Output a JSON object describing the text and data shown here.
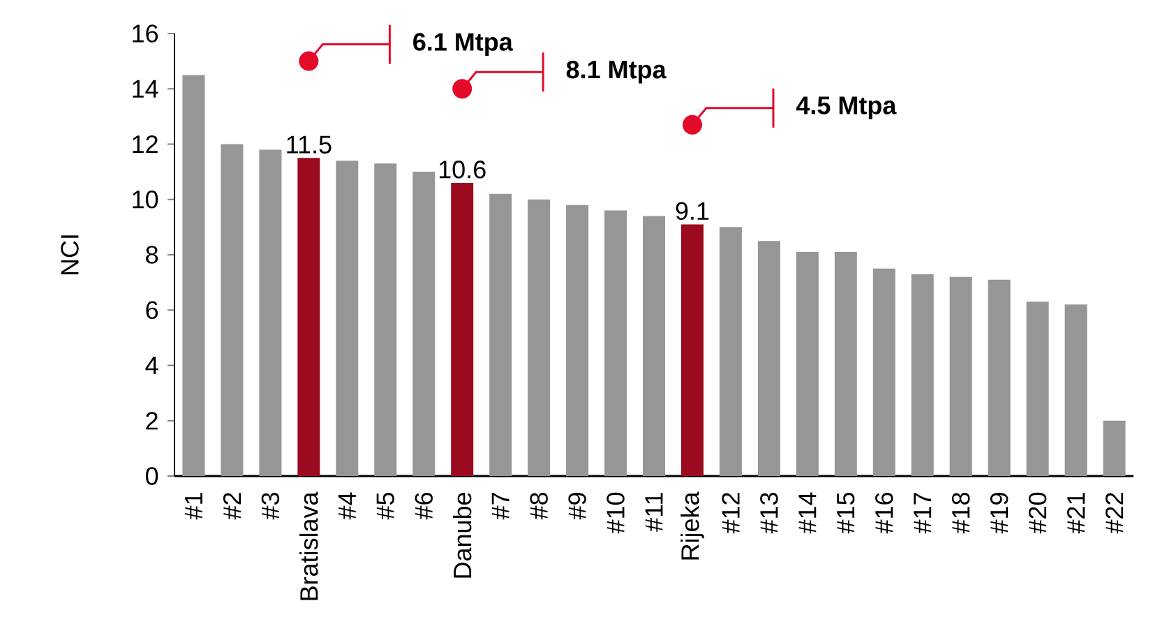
{
  "chart_data": {
    "type": "bar",
    "ylabel": "NCI",
    "categories": [
      "#1",
      "#2",
      "#3",
      "Bratislava",
      "#4",
      "#5",
      "#6",
      "Danube",
      "#7",
      "#8",
      "#9",
      "#10",
      "#11",
      "Rijeka",
      "#12",
      "#13",
      "#14",
      "#15",
      "#16",
      "#17",
      "#18",
      "#19",
      "#20",
      "#21",
      "#22"
    ],
    "values": [
      14.5,
      12.0,
      11.8,
      11.5,
      11.4,
      11.3,
      11.0,
      10.6,
      10.2,
      10.0,
      9.8,
      9.6,
      9.4,
      9.1,
      9.0,
      8.5,
      8.1,
      8.1,
      7.5,
      7.3,
      7.2,
      7.1,
      6.3,
      6.2,
      2.0
    ],
    "colors": [
      "#969696",
      "#969696",
      "#969696",
      "#9b0a1e",
      "#969696",
      "#969696",
      "#969696",
      "#9b0a1e",
      "#969696",
      "#969696",
      "#969696",
      "#969696",
      "#969696",
      "#9b0a1e",
      "#969696",
      "#969696",
      "#969696",
      "#969696",
      "#969696",
      "#969696",
      "#969696",
      "#969696",
      "#969696",
      "#969696",
      "#969696"
    ],
    "value_labels": [
      null,
      null,
      null,
      "11.5",
      null,
      null,
      null,
      "10.6",
      null,
      null,
      null,
      null,
      null,
      "9.1",
      null,
      null,
      null,
      null,
      null,
      null,
      null,
      null,
      null,
      null,
      null
    ],
    "ylim": [
      0,
      16
    ],
    "yticks": [
      0,
      2,
      4,
      6,
      8,
      10,
      12,
      14,
      16
    ],
    "grid": false,
    "annotations": [
      {
        "text": "6.1 Mtpa",
        "x": "Bratislava",
        "y": 15.0
      },
      {
        "text": "8.1 Mtpa",
        "x": "Danube",
        "y": 14.0
      },
      {
        "text": "4.5 Mtpa",
        "x": "Rijeka",
        "y": 12.7
      }
    ]
  }
}
